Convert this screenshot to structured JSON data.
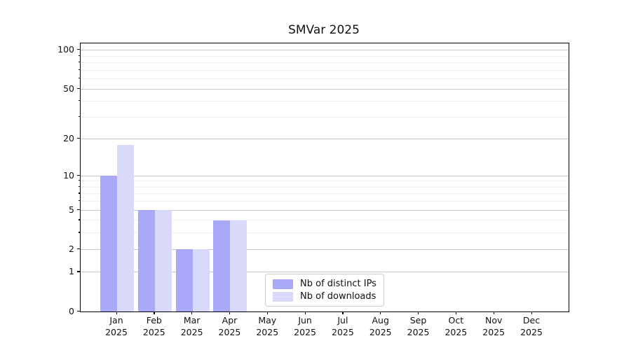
{
  "figure": {
    "title": "SMVar 2025"
  },
  "chart_data": {
    "type": "bar",
    "title": "SMVar 2025",
    "categories": [
      "Jan",
      "Feb",
      "Mar",
      "Apr",
      "May",
      "Jun",
      "Jul",
      "Aug",
      "Sep",
      "Oct",
      "Nov",
      "Dec"
    ],
    "x_tick_year": "2025",
    "series": [
      {
        "name": "Nb of distinct IPs",
        "color": "#a9a9f7",
        "values": [
          10,
          5,
          2,
          4,
          0,
          0,
          0,
          0,
          0,
          0,
          0,
          0
        ]
      },
      {
        "name": "Nb of downloads",
        "color": "#d9d9fa",
        "values": [
          18,
          5,
          2,
          4,
          0,
          0,
          0,
          0,
          0,
          0,
          0,
          0
        ]
      }
    ],
    "yscale": "log1p",
    "ylim": [
      0,
      113
    ],
    "y_major_ticks": [
      100,
      50,
      20,
      10,
      5,
      2,
      1,
      0
    ],
    "y_minor_ticks": [
      3,
      4,
      6,
      7,
      8,
      9,
      30,
      40,
      60,
      70,
      80,
      90
    ],
    "grid": true,
    "xlabel": "",
    "ylabel": "",
    "legend": {
      "position": "lower-center",
      "items": [
        "Nb of distinct IPs",
        "Nb of downloads"
      ]
    }
  },
  "colors": {
    "bar_distinct_ips": "#a9a9f7",
    "bar_downloads": "#d9d9fa",
    "grid_major": "#c9c9c9",
    "grid_minor": "#efefef",
    "spine": "#000000",
    "text": "#111111",
    "legend_border": "#cccccc"
  }
}
